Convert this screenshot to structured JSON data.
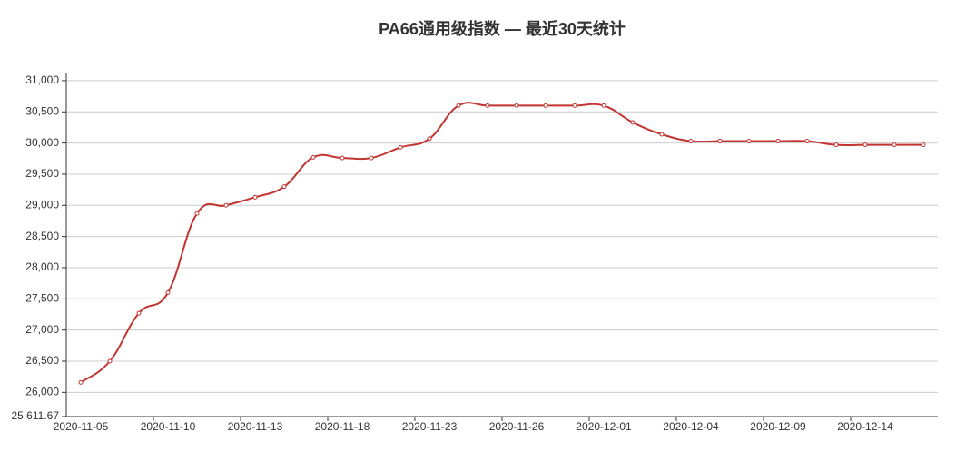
{
  "chart_data": {
    "type": "line",
    "title": "PA66通用级指数 — 最近30天统计",
    "categories": [
      "2020-11-05",
      null,
      null,
      "2020-11-10",
      null,
      null,
      "2020-11-13",
      null,
      null,
      "2020-11-18",
      null,
      null,
      "2020-11-23",
      null,
      null,
      "2020-11-26",
      null,
      null,
      "2020-12-01",
      null,
      null,
      "2020-12-04",
      null,
      null,
      "2020-12-09",
      null,
      null,
      "2020-12-14",
      null,
      null
    ],
    "series": [
      {
        "color": "#c23531",
        "values": [
          26160,
          26500,
          27270,
          27600,
          28870,
          29000,
          29130,
          29300,
          29770,
          29760,
          29760,
          29930,
          30070,
          30600,
          30600,
          30600,
          30600,
          30600,
          30600,
          30330,
          30140,
          30030,
          30030,
          30030,
          30030,
          30030,
          29970,
          29970,
          29970,
          29970
        ]
      }
    ],
    "ylim": [
      25611.67,
      31130
    ],
    "yticks": [
      {
        "value": 25611.67,
        "label": "25,611.67"
      },
      {
        "value": 26000,
        "label": "26,000"
      },
      {
        "value": 26500,
        "label": "26,500"
      },
      {
        "value": 27000,
        "label": "27,000"
      },
      {
        "value": 27500,
        "label": "27,500"
      },
      {
        "value": 28000,
        "label": "28,000"
      },
      {
        "value": 28500,
        "label": "28,500"
      },
      {
        "value": 29000,
        "label": "29,000"
      },
      {
        "value": 29500,
        "label": "29,500"
      },
      {
        "value": 30000,
        "label": "30,000"
      },
      {
        "value": 30500,
        "label": "30,500"
      },
      {
        "value": 31000,
        "label": "31,000"
      }
    ],
    "grid": true
  }
}
